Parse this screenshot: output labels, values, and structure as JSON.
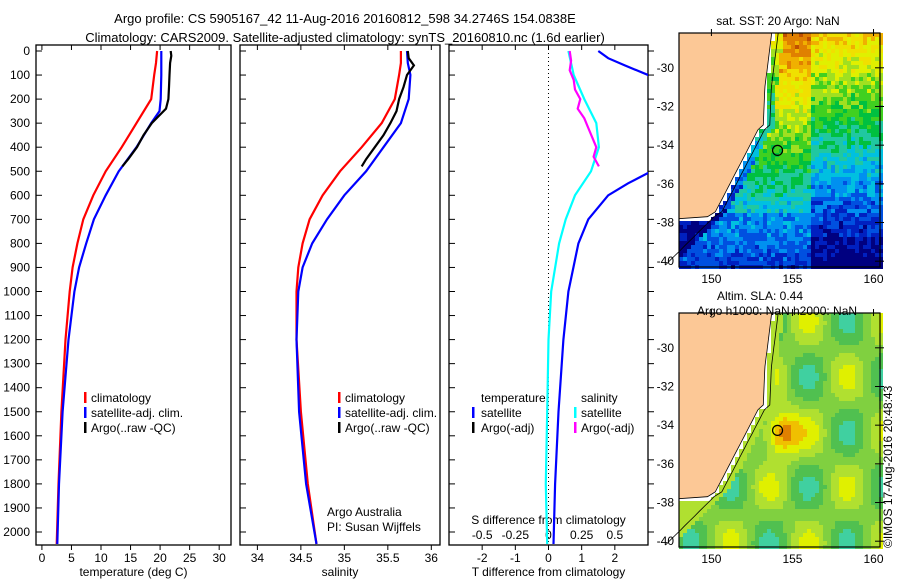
{
  "title_line1": "Argo profile: CS 5905167_42 11-Aug-2016 20160812_598 34.2746S 154.0838E",
  "title_line2": "Climatology: CARS2009. Satellite-adjusted climatology: synTS_20160810.nc (1.6d earlier)",
  "credit": "©IMOS 17-Aug-2016 20:48:43",
  "colors": {
    "climatology": "#ff0000",
    "satellite": "#0000ff",
    "argo": "#000000",
    "sal_sat": "#00ffff",
    "sal_argo": "#ff00ff",
    "land": "#fcc896"
  },
  "chart_data": [
    {
      "type": "line",
      "name": "temperature",
      "xlabel": "temperature (deg C)",
      "ylabel": "depth",
      "xlim": [
        -1,
        32
      ],
      "ylim": [
        2060,
        -25
      ],
      "xticks": [
        "0",
        "5",
        "10",
        "15",
        "20",
        "25",
        "30"
      ],
      "xtick_values": [
        0,
        5,
        10,
        15,
        20,
        25,
        30
      ],
      "yticks": [
        "0",
        "100",
        "200",
        "300",
        "400",
        "500",
        "600",
        "700",
        "800",
        "900",
        "1000",
        "1100",
        "1200",
        "1300",
        "1400",
        "1500",
        "1600",
        "1700",
        "1800",
        "1900",
        "2000"
      ],
      "legend": [
        "climatology",
        "satellite-adj. clim.",
        "Argo(..raw -QC)"
      ],
      "series": [
        {
          "name": "climatology",
          "color": "#ff0000",
          "depth": [
            0,
            50,
            100,
            200,
            300,
            400,
            500,
            600,
            700,
            800,
            900,
            1000,
            1200,
            1500,
            1800,
            2050
          ],
          "values": [
            19.5,
            19.3,
            19,
            18.5,
            16,
            13.5,
            10.8,
            8.7,
            7,
            6,
            5.2,
            4.7,
            4,
            3.3,
            2.8,
            2.5
          ]
        },
        {
          "name": "satellite-adj. clim.",
          "color": "#0000ff",
          "depth": [
            0,
            50,
            100,
            200,
            250,
            300,
            400,
            500,
            600,
            700,
            800,
            900,
            1000,
            1200,
            1500,
            1800,
            2050
          ],
          "values": [
            20.2,
            20.2,
            20.2,
            20.1,
            19.9,
            18.5,
            16,
            13,
            10.8,
            8.8,
            7.5,
            6.3,
            5.5,
            4.5,
            3.5,
            2.9,
            2.6
          ]
        },
        {
          "name": "Argo(..raw -QC)",
          "color": "#000000",
          "depth": [
            0,
            20,
            50,
            100,
            150,
            200,
            240,
            270,
            300,
            350,
            400,
            450,
            480
          ],
          "values": [
            21.8,
            21.9,
            21.7,
            21.6,
            21.5,
            21.4,
            21,
            19.8,
            18.6,
            17.2,
            16.1,
            14.6,
            13.6
          ]
        }
      ]
    },
    {
      "type": "line",
      "name": "salinity",
      "xlabel": "salinity",
      "ylabel": "depth",
      "xlim": [
        33.8,
        36.1
      ],
      "ylim": [
        2060,
        -25
      ],
      "xticks": [
        "34",
        "34.5",
        "35",
        "35.5",
        "36"
      ],
      "xtick_values": [
        34,
        34.5,
        35,
        35.5,
        36
      ],
      "legend": [
        "climatology",
        "satellite-adj. clim.",
        "Argo(..raw -QC)"
      ],
      "annotation": [
        "Argo Australia",
        "PI: Susan Wijffels"
      ],
      "series": [
        {
          "name": "climatology",
          "color": "#ff0000",
          "depth": [
            0,
            50,
            100,
            200,
            300,
            400,
            500,
            600,
            700,
            800,
            900,
            1000,
            1200,
            1500,
            1800,
            2050
          ],
          "values": [
            35.65,
            35.65,
            35.63,
            35.58,
            35.43,
            35.2,
            34.95,
            34.75,
            34.6,
            34.52,
            34.47,
            34.45,
            34.45,
            34.5,
            34.58,
            34.68
          ]
        },
        {
          "name": "satellite-adj. clim.",
          "color": "#0000ff",
          "depth": [
            0,
            50,
            100,
            200,
            300,
            400,
            500,
            600,
            700,
            800,
            900,
            1000,
            1200,
            1500,
            1800,
            2050
          ],
          "values": [
            35.72,
            35.73,
            35.76,
            35.74,
            35.65,
            35.45,
            35.25,
            35.0,
            34.8,
            34.63,
            34.52,
            34.47,
            34.45,
            34.48,
            34.56,
            34.68
          ]
        },
        {
          "name": "Argo(..raw -QC)",
          "color": "#000000",
          "depth": [
            0,
            30,
            60,
            100,
            150,
            200,
            250,
            300,
            350,
            400,
            450,
            480
          ],
          "values": [
            35.73,
            35.74,
            35.8,
            35.72,
            35.68,
            35.63,
            35.6,
            35.53,
            35.45,
            35.35,
            35.25,
            35.2
          ]
        }
      ]
    },
    {
      "type": "line",
      "name": "difference",
      "xlabel": "T difference from climatology",
      "xlabel_top": "S difference from climatology",
      "ylim": [
        2060,
        -25
      ],
      "xlim": [
        -3,
        3
      ],
      "xticks": [
        "-2",
        "-1",
        "0",
        "1",
        "2"
      ],
      "xtick_values": [
        -2,
        -1,
        0,
        1,
        2
      ],
      "s_xlim": [
        -0.75,
        0.75
      ],
      "s_xticks": [
        "-0.5",
        "-0.25",
        "0",
        "0.25",
        "0.5"
      ],
      "s_xtick_values": [
        -0.5,
        -0.25,
        0,
        0.25,
        0.5
      ],
      "legend_t": {
        "title": "temperature",
        "items": [
          "satellite",
          "Argo(-adj)"
        ]
      },
      "legend_s": {
        "title": "salinity",
        "items": [
          "satellite",
          "Argo(-adj)"
        ]
      },
      "series": [
        {
          "name": "T satellite",
          "color": "#0000ff",
          "axis": "T",
          "depth": [
            0,
            30,
            60,
            100,
            130
          ],
          "values": [
            1.5,
            1.8,
            2.3,
            3.0,
            3.2
          ]
        },
        {
          "name": "T satellite deep",
          "color": "#0000ff",
          "axis": "T",
          "depth": [
            500,
            550,
            600,
            700,
            800,
            1000,
            1200,
            1500,
            1800,
            2050
          ],
          "values": [
            3.1,
            2.4,
            1.8,
            1.2,
            0.9,
            0.6,
            0.45,
            0.3,
            0.2,
            0.15
          ]
        },
        {
          "name": "S satellite",
          "color": "#00ffff",
          "axis": "S",
          "depth": [
            0,
            100,
            200,
            300,
            400,
            500,
            600,
            700,
            800,
            1000,
            1200,
            1500,
            1800,
            2050
          ],
          "values": [
            0.15,
            0.19,
            0.27,
            0.36,
            0.38,
            0.32,
            0.2,
            0.13,
            0.08,
            0.02,
            0,
            -0.01,
            -0.02,
            -0.01
          ]
        },
        {
          "name": "S Argo(-adj)",
          "color": "#ff00ff",
          "axis": "S",
          "depth": [
            0,
            40,
            80,
            120,
            160,
            200,
            240,
            280,
            320,
            360,
            400,
            440,
            480
          ],
          "values": [
            0.16,
            0.17,
            0.16,
            0.19,
            0.2,
            0.24,
            0.22,
            0.27,
            0.3,
            0.33,
            0.36,
            0.34,
            0.38
          ]
        }
      ]
    },
    {
      "type": "heatmap",
      "title": "sat. SST: 20 Argo: NaN",
      "xticks": [
        "150",
        "155",
        "160"
      ],
      "yticks": [
        "-30",
        "-32",
        "-34",
        "-36",
        "-38",
        "-40"
      ],
      "xlim": [
        148,
        160.4
      ],
      "ylim": [
        -40.3,
        -28.2
      ],
      "marker": {
        "lon": 154.08,
        "lat": -34.27
      }
    },
    {
      "type": "heatmap",
      "title": "Altim. SLA: 0.44",
      "subtitle": "Argo h1000: NaN h2000: NaN",
      "xticks": [
        "150",
        "155",
        "160"
      ],
      "yticks": [
        "-30",
        "-32",
        "-34",
        "-36",
        "-38",
        "-40"
      ],
      "xlim": [
        148,
        160.4
      ],
      "ylim": [
        -40.3,
        -28.2
      ],
      "marker": {
        "lon": 154.08,
        "lat": -34.27
      }
    }
  ]
}
